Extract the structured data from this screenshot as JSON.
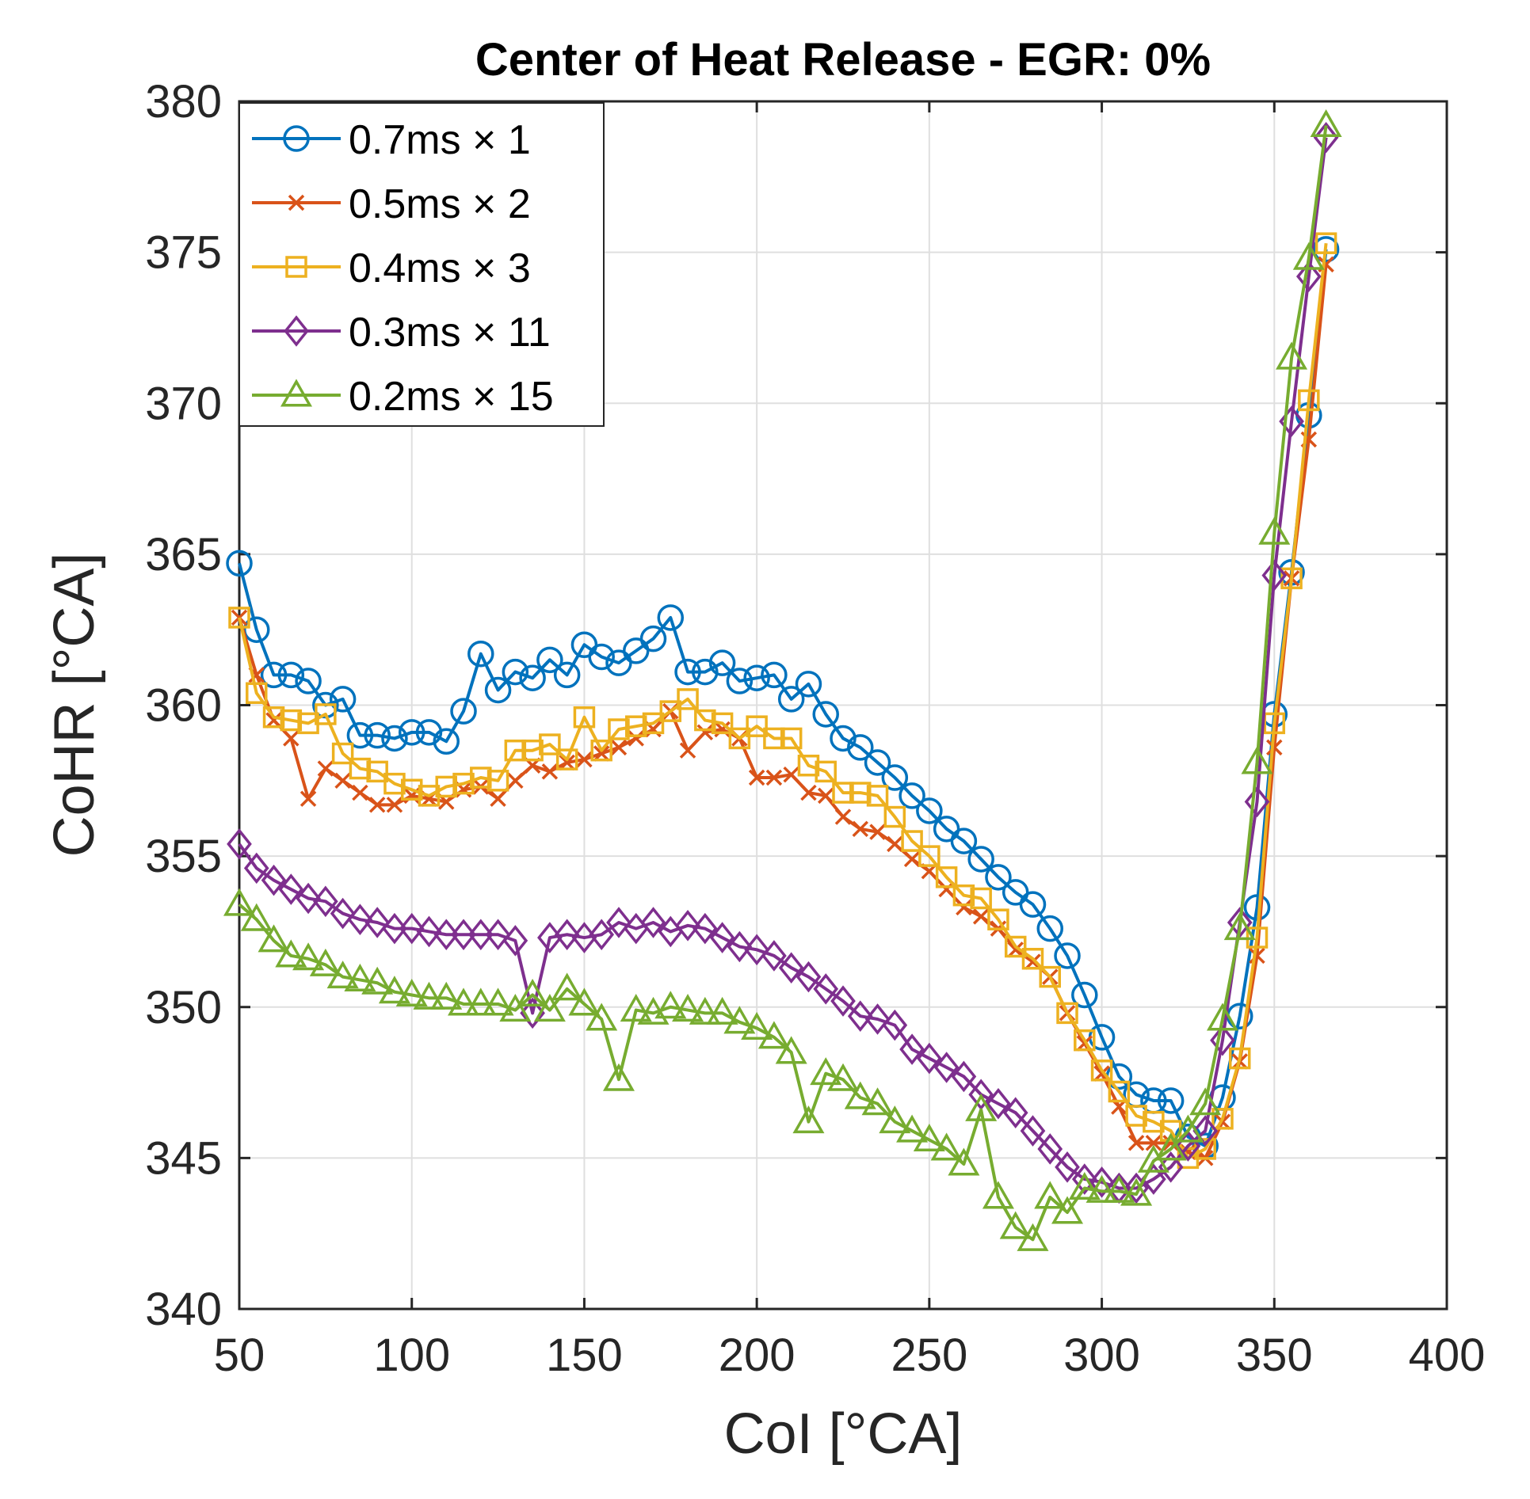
{
  "chart_data": {
    "type": "line",
    "title": "Center of Heat Release - EGR: 0%",
    "xlabel": "CoI [°CA]",
    "ylabel": "CoHR [°CA]",
    "xlim": [
      50,
      400
    ],
    "ylim": [
      340,
      380
    ],
    "xticks": [
      "50",
      "100",
      "150",
      "200",
      "250",
      "300",
      "350",
      "400"
    ],
    "yticks": [
      "340",
      "345",
      "350",
      "355",
      "360",
      "365",
      "370",
      "375",
      "380"
    ],
    "grid": true,
    "legend_position": "top-left",
    "x": [
      50,
      55,
      60,
      65,
      70,
      75,
      80,
      85,
      90,
      95,
      100,
      105,
      110,
      115,
      120,
      125,
      130,
      135,
      140,
      145,
      150,
      155,
      160,
      165,
      170,
      175,
      180,
      185,
      190,
      195,
      200,
      205,
      210,
      215,
      220,
      225,
      230,
      235,
      240,
      245,
      250,
      255,
      260,
      265,
      270,
      275,
      280,
      285,
      290,
      295,
      300,
      305,
      310,
      315,
      320,
      325,
      330,
      335,
      340,
      345,
      350,
      355,
      360,
      365
    ],
    "series": [
      {
        "name": "0.7ms × 1",
        "color": "#0072BD",
        "marker": "circle",
        "values": [
          364.7,
          362.5,
          361.0,
          361.0,
          360.8,
          360.0,
          360.2,
          359.0,
          359.0,
          358.9,
          359.1,
          359.1,
          358.8,
          359.8,
          361.7,
          360.5,
          361.1,
          360.9,
          361.5,
          361.0,
          362.0,
          361.6,
          361.4,
          361.8,
          362.2,
          362.9,
          361.1,
          361.1,
          361.4,
          360.8,
          360.9,
          361.0,
          360.2,
          360.7,
          359.7,
          358.9,
          358.6,
          358.1,
          357.6,
          357.0,
          356.5,
          355.9,
          355.5,
          354.9,
          354.3,
          353.8,
          353.4,
          352.6,
          351.7,
          350.4,
          349.0,
          347.7,
          347.1,
          346.9,
          346.9,
          345.7,
          345.4,
          347.0,
          349.7,
          353.3,
          359.7,
          364.4,
          369.6,
          375.1
        ]
      },
      {
        "name": "0.5ms × 2",
        "color": "#D95319",
        "marker": "x",
        "values": [
          362.9,
          361.0,
          359.5,
          358.9,
          356.9,
          357.9,
          357.5,
          357.1,
          356.7,
          356.7,
          357.0,
          356.9,
          356.8,
          357.2,
          357.3,
          356.9,
          357.5,
          358.0,
          357.8,
          358.1,
          358.2,
          358.4,
          358.6,
          358.9,
          359.2,
          359.8,
          358.5,
          359.1,
          359.2,
          358.9,
          357.6,
          357.6,
          357.7,
          357.1,
          357.0,
          356.3,
          355.9,
          355.8,
          355.4,
          354.9,
          354.5,
          353.9,
          353.3,
          353.0,
          352.6,
          351.9,
          351.5,
          351.0,
          349.8,
          348.8,
          347.8,
          346.7,
          345.5,
          345.5,
          345.5,
          345.2,
          345.0,
          346.2,
          348.2,
          351.7,
          358.6,
          364.2,
          368.8,
          374.6
        ]
      },
      {
        "name": "0.4ms × 3",
        "color": "#EDB120",
        "marker": "square",
        "values": [
          362.9,
          360.4,
          359.6,
          359.5,
          359.4,
          359.7,
          358.4,
          357.9,
          357.8,
          357.4,
          357.2,
          357.0,
          357.3,
          357.4,
          357.6,
          357.5,
          358.5,
          358.5,
          358.7,
          358.2,
          359.6,
          358.5,
          359.2,
          359.3,
          359.4,
          359.8,
          360.2,
          359.5,
          359.4,
          358.9,
          359.3,
          358.9,
          358.9,
          358.0,
          357.8,
          357.1,
          357.1,
          357.0,
          356.3,
          355.5,
          355.0,
          354.3,
          353.7,
          353.6,
          352.9,
          352.0,
          351.6,
          351.0,
          349.8,
          348.9,
          347.9,
          347.2,
          346.4,
          346.2,
          345.9,
          345.0,
          345.3,
          346.3,
          348.3,
          352.3,
          359.4,
          364.2,
          370.1,
          375.3
        ]
      },
      {
        "name": "0.3ms × 11",
        "color": "#7E2F8E",
        "marker": "diamond",
        "values": [
          355.4,
          354.6,
          354.2,
          353.9,
          353.6,
          353.5,
          353.1,
          352.9,
          352.8,
          352.6,
          352.6,
          352.5,
          352.4,
          352.4,
          352.4,
          352.4,
          352.2,
          349.8,
          352.3,
          352.4,
          352.3,
          352.4,
          352.8,
          352.6,
          352.8,
          352.5,
          352.7,
          352.6,
          352.3,
          352.0,
          351.9,
          351.7,
          351.3,
          351.0,
          350.6,
          350.2,
          349.7,
          349.6,
          349.4,
          348.6,
          348.3,
          348.0,
          347.7,
          347.1,
          346.8,
          346.5,
          345.9,
          345.3,
          344.7,
          344.3,
          344.2,
          344.0,
          344.0,
          344.3,
          344.7,
          345.4,
          345.9,
          348.9,
          352.8,
          356.8,
          364.3,
          369.4,
          374.2,
          378.8
        ]
      },
      {
        "name": "0.2ms × 15",
        "color": "#77AC30",
        "marker": "triangle",
        "values": [
          353.4,
          352.9,
          352.2,
          351.7,
          351.6,
          351.4,
          351.0,
          350.9,
          350.8,
          350.5,
          350.4,
          350.3,
          350.3,
          350.1,
          350.1,
          350.1,
          349.9,
          350.4,
          349.9,
          350.6,
          350.1,
          349.6,
          347.6,
          349.9,
          349.8,
          350.0,
          349.9,
          349.8,
          349.8,
          349.5,
          349.3,
          349.0,
          348.5,
          346.2,
          347.8,
          347.6,
          347.0,
          346.8,
          346.2,
          345.9,
          345.6,
          345.3,
          344.8,
          346.6,
          343.7,
          342.7,
          342.3,
          343.7,
          343.2,
          344.0,
          343.9,
          343.9,
          343.8,
          344.9,
          345.3,
          345.9,
          346.8,
          349.6,
          352.6,
          358.1,
          365.7,
          371.5,
          374.8,
          379.2
        ]
      }
    ]
  }
}
